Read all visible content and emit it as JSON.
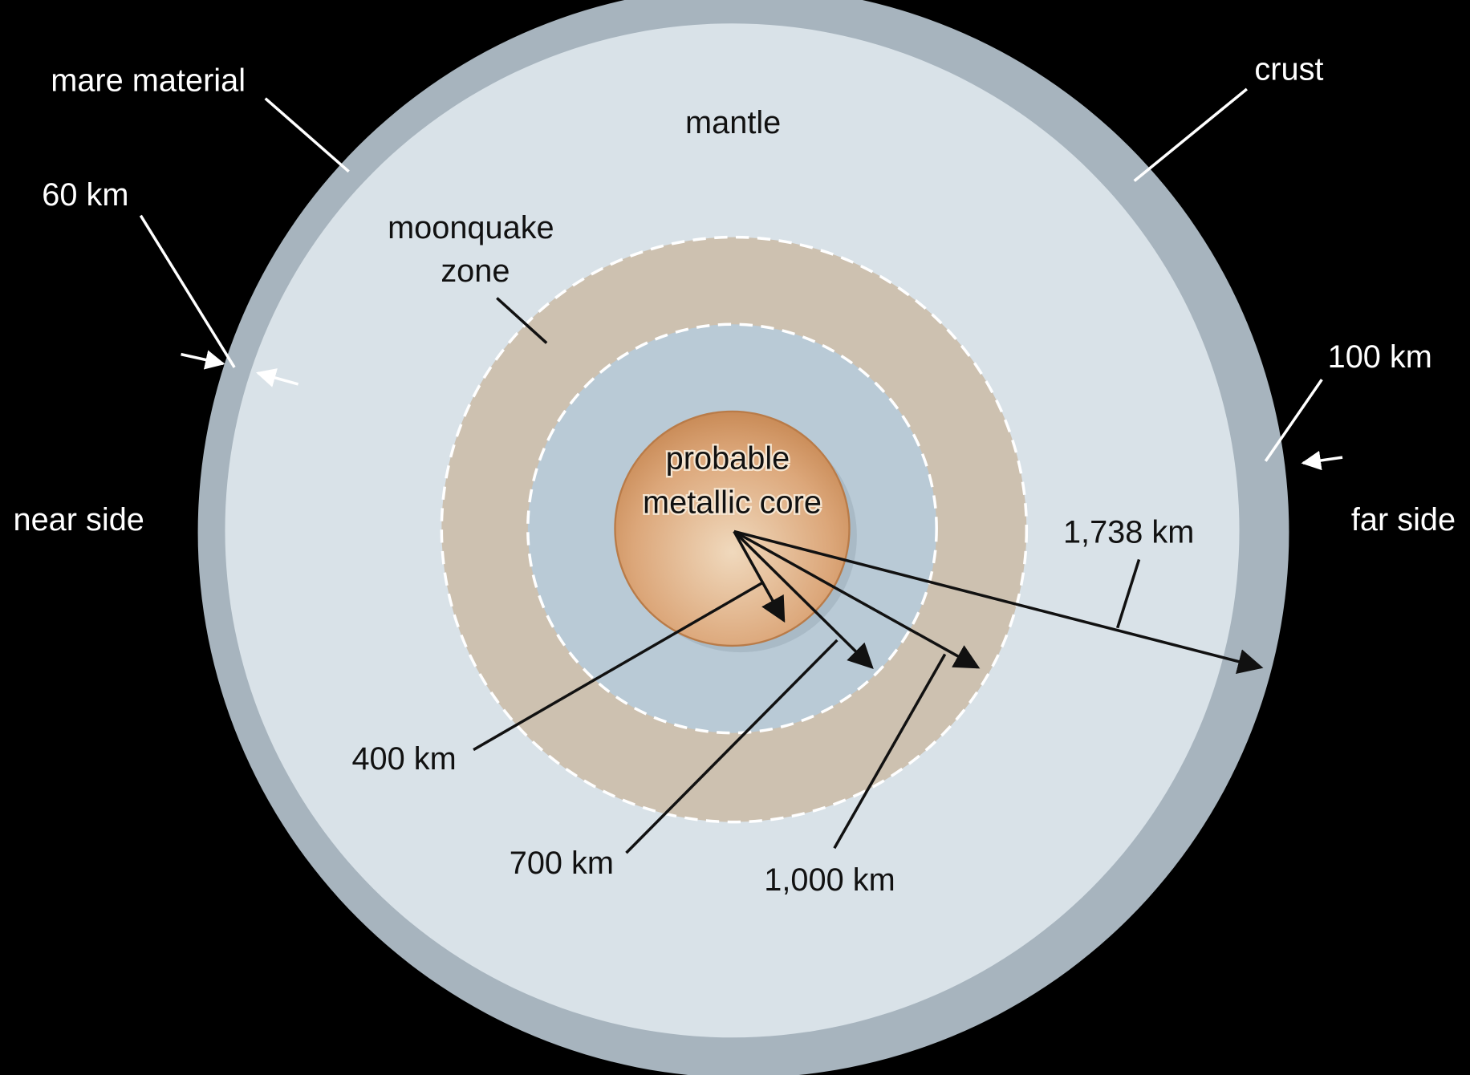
{
  "diagram": {
    "labels": {
      "mare_material": "mare material",
      "crust": "crust",
      "mantle": "mantle",
      "km_60": "60 km",
      "moonquake_zone": [
        "moonquake",
        "zone"
      ],
      "km_100": "100 km",
      "near_side": "near side",
      "far_side": "far side",
      "core": [
        "probable",
        "metallic core"
      ],
      "km_1738": "1,738 km",
      "km_400": "400 km",
      "km_700": "700 km",
      "km_1000": "1,000 km"
    }
  }
}
